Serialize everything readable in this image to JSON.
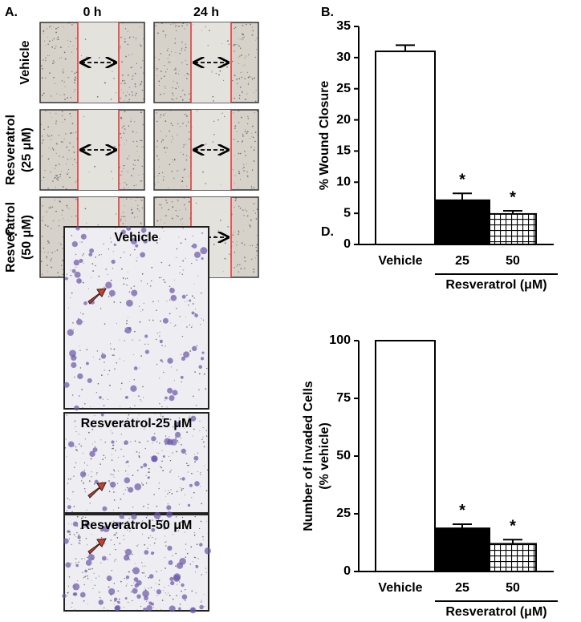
{
  "panel_a": {
    "label": "A.",
    "columns": [
      "0 h",
      "24 h"
    ],
    "rows": [
      [
        "Vehicle"
      ],
      [
        "Resveratrol",
        "(25 μM)"
      ],
      [
        "Resveratrol",
        "(50 μM)"
      ]
    ]
  },
  "panel_c": {
    "label": "C.",
    "images": [
      "Vehicle",
      "Resveratrol-25 μM",
      "Resveratrol-50 μM"
    ]
  },
  "chart_data": [
    {
      "type": "bar",
      "panel_label": "B.",
      "y_label": [
        "% Wound Closure"
      ],
      "categories": [
        "Vehicle",
        "25",
        "50"
      ],
      "values": [
        31,
        7.1,
        4.9
      ],
      "errors": [
        1.0,
        1.1,
        0.5
      ],
      "fills": [
        "white",
        "black",
        "hatch"
      ],
      "annotations": [
        null,
        "*",
        "*"
      ],
      "group_label": "Resveratrol (μM)",
      "group_span": [
        1,
        2
      ],
      "ylim": [
        0,
        35
      ],
      "yticks": [
        0,
        5,
        10,
        15,
        20,
        25,
        30,
        35
      ]
    },
    {
      "type": "bar",
      "panel_label": "D.",
      "y_label": [
        "Number of Invaded Cells",
        "(% vehicle)"
      ],
      "categories": [
        "Vehicle",
        "25",
        "50"
      ],
      "values": [
        100,
        18.7,
        12
      ],
      "errors": [
        null,
        1.8,
        1.8
      ],
      "fills": [
        "white",
        "black",
        "hatch"
      ],
      "annotations": [
        null,
        "*",
        "*"
      ],
      "group_label": "Resveratrol (μM)",
      "group_span": [
        1,
        2
      ],
      "ylim": [
        0,
        100
      ],
      "yticks": [
        0,
        25,
        50,
        75,
        100
      ]
    }
  ]
}
